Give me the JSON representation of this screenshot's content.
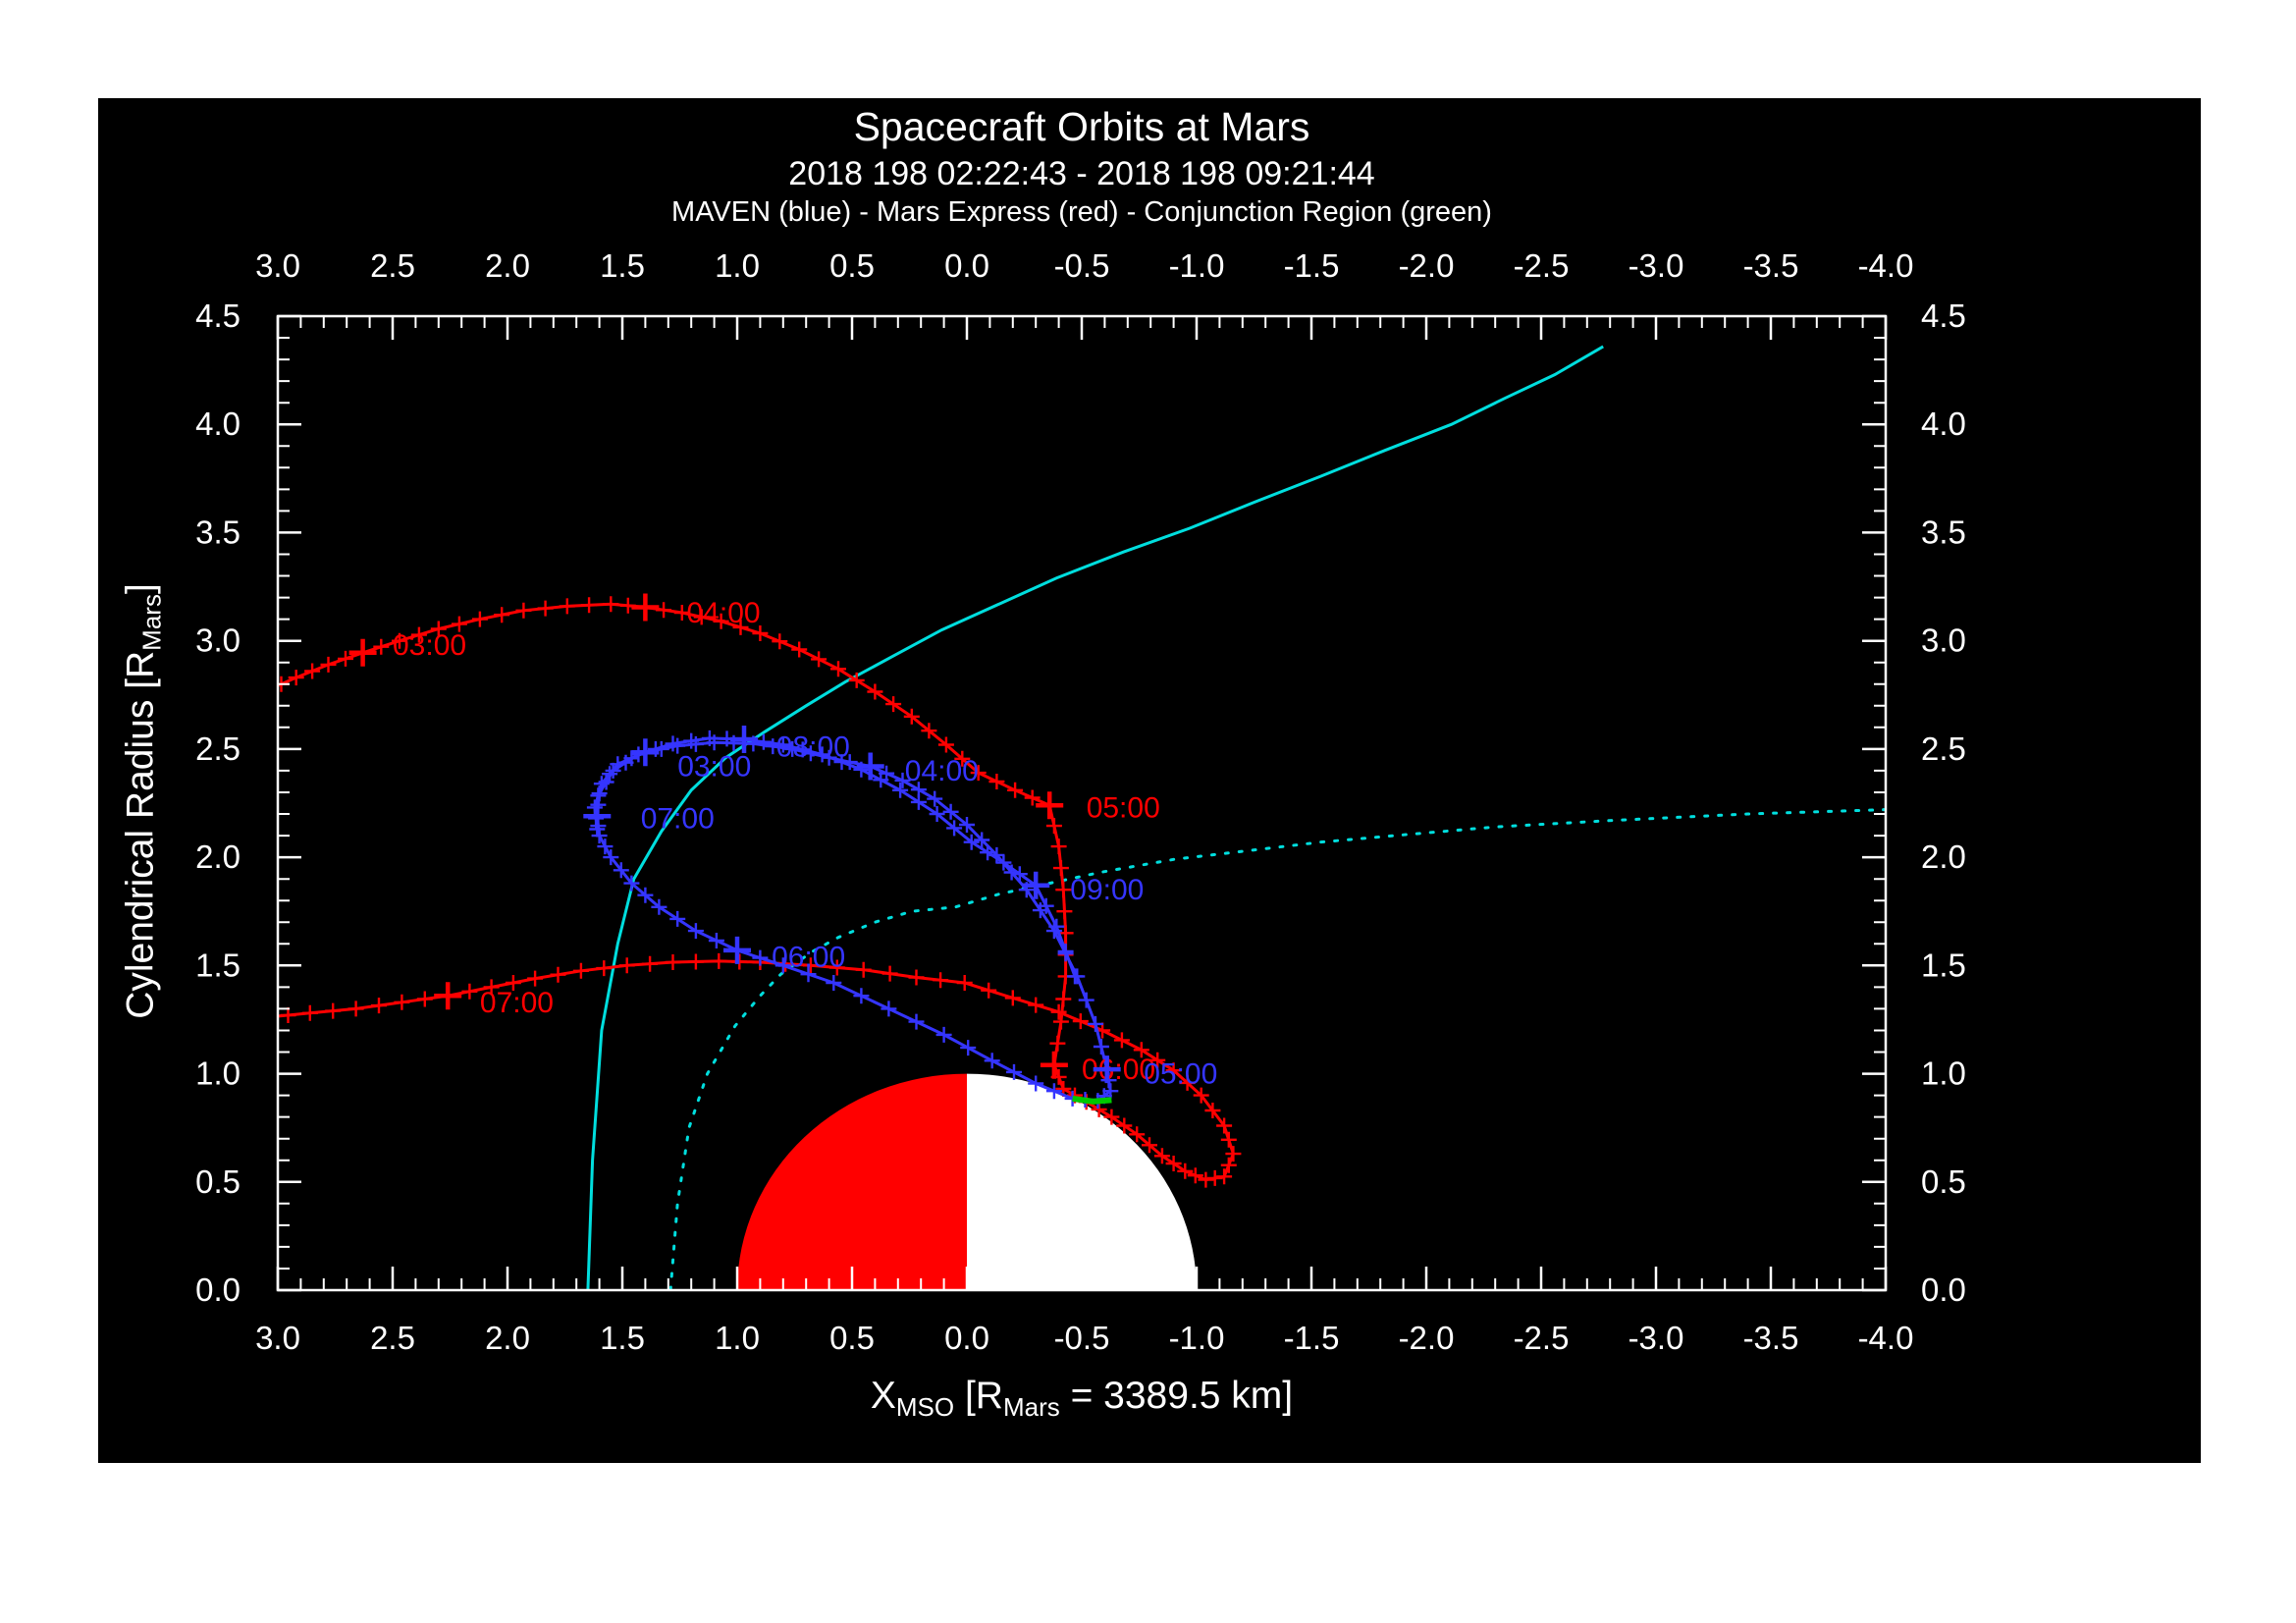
{
  "chart_data": {
    "type": "line",
    "title": "Spacecraft Orbits at Mars",
    "subtitle": "2018 198 02:22:43 - 2018 198 09:21:44",
    "legend_line": "MAVEN (blue) - Mars Express (red) - Conjunction Region (green)",
    "x_axis": {
      "label_parts": [
        "X",
        "MSO",
        " [R",
        "Mars",
        " = 3389.5 km]"
      ],
      "range": [
        3.0,
        -4.0
      ],
      "tick_values": [
        3.0,
        2.5,
        2.0,
        1.5,
        1.0,
        0.5,
        0.0,
        -0.5,
        -1.0,
        -1.5,
        -2.0,
        -2.5,
        -3.0,
        -3.5,
        -4.0
      ],
      "tick_labels": [
        "3.0",
        "2.5",
        "2.0",
        "1.5",
        "1.0",
        "0.5",
        "0.0",
        "-0.5",
        "-1.0",
        "-1.5",
        "-2.0",
        "-2.5",
        "-3.0",
        "-3.5",
        "-4.0"
      ],
      "minor_step": 0.1
    },
    "y_axis": {
      "label_parts": [
        "Cylendrical Radius [R",
        "Mars",
        "]"
      ],
      "range": [
        0.0,
        4.5
      ],
      "tick_values": [
        0.0,
        0.5,
        1.0,
        1.5,
        2.0,
        2.5,
        3.0,
        3.5,
        4.0,
        4.5
      ],
      "tick_labels": [
        "0.0",
        "0.5",
        "1.0",
        "1.5",
        "2.0",
        "2.5",
        "3.0",
        "3.5",
        "4.0",
        "4.5"
      ],
      "minor_step": 0.1
    },
    "grid": false,
    "frame_color": "#ffffff",
    "mars": {
      "center": [
        0,
        0
      ],
      "radius": 1.0,
      "sunward_half_color": "#ff0000",
      "anti_sunward_half_color": "#ffffff"
    },
    "series": [
      {
        "name": "bow-shock",
        "color": "#00dede",
        "style": "solid",
        "width": 3,
        "markers": "none",
        "points": [
          [
            1.65,
            0.0
          ],
          [
            1.63,
            0.6
          ],
          [
            1.59,
            1.2
          ],
          [
            1.52,
            1.6
          ],
          [
            1.45,
            1.9
          ],
          [
            1.33,
            2.12
          ],
          [
            1.2,
            2.31
          ],
          [
            1.05,
            2.46
          ],
          [
            0.88,
            2.58
          ],
          [
            0.7,
            2.7
          ],
          [
            0.53,
            2.81
          ],
          [
            0.32,
            2.93
          ],
          [
            0.11,
            3.05
          ],
          [
            -0.14,
            3.17
          ],
          [
            -0.39,
            3.29
          ],
          [
            -0.68,
            3.41
          ],
          [
            -0.97,
            3.52
          ],
          [
            -1.25,
            3.64
          ],
          [
            -1.54,
            3.76
          ],
          [
            -1.82,
            3.88
          ],
          [
            -2.11,
            4.0
          ],
          [
            -2.34,
            4.12
          ],
          [
            -2.56,
            4.23
          ],
          [
            -2.77,
            4.36
          ]
        ]
      },
      {
        "name": "mpb-boundary",
        "color": "#00dede",
        "style": "dotted",
        "width": 3,
        "markers": "none",
        "points": [
          [
            1.29,
            0.0
          ],
          [
            1.26,
            0.4
          ],
          [
            1.21,
            0.75
          ],
          [
            1.13,
            1.0
          ],
          [
            1.01,
            1.22
          ],
          [
            0.9,
            1.36
          ],
          [
            0.81,
            1.46
          ],
          [
            0.68,
            1.56
          ],
          [
            0.56,
            1.63
          ],
          [
            0.4,
            1.7
          ],
          [
            0.24,
            1.75
          ],
          [
            0.05,
            1.77
          ],
          [
            -0.14,
            1.83
          ],
          [
            -0.36,
            1.88
          ],
          [
            -0.58,
            1.93
          ],
          [
            -0.9,
            1.99
          ],
          [
            -1.22,
            2.03
          ],
          [
            -1.54,
            2.07
          ],
          [
            -1.86,
            2.1
          ],
          [
            -2.3,
            2.14
          ],
          [
            -2.81,
            2.17
          ],
          [
            -3.4,
            2.2
          ],
          [
            -4.0,
            2.22
          ]
        ]
      },
      {
        "name": "mars-express-orbit",
        "color": "#ff0000",
        "style": "solid",
        "width": 3,
        "markers": "plus",
        "points": [
          [
            3.05,
            2.77
          ],
          [
            2.92,
            2.83
          ],
          [
            2.78,
            2.89
          ],
          [
            2.63,
            2.945
          ],
          [
            2.47,
            3.0
          ],
          [
            2.3,
            3.055
          ],
          [
            2.12,
            3.1
          ],
          [
            1.93,
            3.14
          ],
          [
            1.74,
            3.16
          ],
          [
            1.55,
            3.17
          ],
          [
            1.4,
            3.155
          ],
          [
            1.24,
            3.13
          ],
          [
            1.07,
            3.09
          ],
          [
            0.9,
            3.035
          ],
          [
            0.73,
            2.96
          ],
          [
            0.56,
            2.87
          ],
          [
            0.4,
            2.765
          ],
          [
            0.24,
            2.65
          ],
          [
            0.09,
            2.52
          ],
          [
            -0.05,
            2.39
          ],
          [
            -0.21,
            2.31
          ],
          [
            -0.36,
            2.24
          ],
          [
            -0.4,
            2.05
          ],
          [
            -0.42,
            1.85
          ],
          [
            -0.43,
            1.65
          ],
          [
            -0.43,
            1.45
          ],
          [
            -0.41,
            1.24
          ],
          [
            -0.38,
            1.04
          ],
          [
            -0.42,
            0.93
          ],
          [
            -0.52,
            0.87
          ],
          [
            -0.63,
            0.8
          ],
          [
            -0.74,
            0.72
          ],
          [
            -0.85,
            0.62
          ],
          [
            -0.95,
            0.55
          ],
          [
            -1.04,
            0.51
          ],
          [
            -1.12,
            0.525
          ],
          [
            -1.16,
            0.63
          ],
          [
            -1.12,
            0.76
          ],
          [
            -1.02,
            0.9
          ],
          [
            -0.9,
            1.015
          ],
          [
            -0.76,
            1.11
          ],
          [
            -0.59,
            1.2
          ],
          [
            -0.4,
            1.285
          ],
          [
            -0.2,
            1.35
          ],
          [
            0.01,
            1.42
          ],
          [
            0.22,
            1.445
          ],
          [
            0.45,
            1.48
          ],
          [
            0.68,
            1.5
          ],
          [
            0.9,
            1.515
          ],
          [
            1.08,
            1.52
          ],
          [
            1.28,
            1.515
          ],
          [
            1.48,
            1.5
          ],
          [
            1.68,
            1.475
          ],
          [
            1.88,
            1.44
          ],
          [
            2.07,
            1.4
          ],
          [
            2.26,
            1.36
          ],
          [
            2.46,
            1.33
          ],
          [
            2.66,
            1.3
          ],
          [
            2.86,
            1.28
          ],
          [
            3.05,
            1.26
          ]
        ],
        "hour_marks": [
          {
            "label": "03:00",
            "marker": [
              2.63,
              2.945
            ],
            "label_pos": [
              2.5,
              2.98
            ]
          },
          {
            "label": "04:00",
            "marker": [
              1.4,
              3.155
            ],
            "label_pos": [
              1.22,
              3.13
            ]
          },
          {
            "label": "05:00",
            "marker": [
              -0.36,
              2.24
            ],
            "label_pos": [
              -0.52,
              2.23
            ]
          },
          {
            "label": "06:00",
            "marker": [
              -0.38,
              1.04
            ],
            "label_pos": [
              -0.5,
              1.02
            ]
          },
          {
            "label": "07:00",
            "marker": [
              2.26,
              1.36
            ],
            "label_pos": [
              2.12,
              1.33
            ]
          }
        ]
      },
      {
        "name": "maven-orbit",
        "color": "#3535ff",
        "style": "solid",
        "width": 3,
        "markers": "plus",
        "points": [
          [
            1.61,
            2.13
          ],
          [
            1.62,
            2.23
          ],
          [
            1.59,
            2.34
          ],
          [
            1.52,
            2.43
          ],
          [
            1.4,
            2.485
          ],
          [
            1.26,
            2.515
          ],
          [
            1.1,
            2.53
          ],
          [
            0.93,
            2.525
          ],
          [
            0.76,
            2.5
          ],
          [
            0.6,
            2.46
          ],
          [
            0.42,
            2.42
          ],
          [
            0.28,
            2.355
          ],
          [
            0.14,
            2.27
          ],
          [
            0.0,
            2.15
          ],
          [
            -0.13,
            2.01
          ],
          [
            -0.26,
            1.85
          ],
          [
            -0.38,
            1.66
          ],
          [
            -0.48,
            1.45
          ],
          [
            -0.56,
            1.23
          ],
          [
            -0.61,
            1.02
          ],
          [
            -0.625,
            0.92
          ],
          [
            -0.57,
            0.875
          ],
          [
            -0.46,
            0.885
          ],
          [
            -0.3,
            0.955
          ],
          [
            -0.11,
            1.06
          ],
          [
            0.1,
            1.18
          ],
          [
            0.34,
            1.3
          ],
          [
            0.58,
            1.42
          ],
          [
            0.8,
            1.5
          ],
          [
            1.0,
            1.57
          ],
          [
            1.18,
            1.66
          ],
          [
            1.34,
            1.77
          ],
          [
            1.46,
            1.88
          ],
          [
            1.55,
            2.0
          ],
          [
            1.6,
            2.1
          ],
          [
            1.61,
            2.19
          ],
          [
            1.6,
            2.295
          ],
          [
            1.54,
            2.4
          ],
          [
            1.43,
            2.475
          ],
          [
            1.28,
            2.525
          ],
          [
            1.12,
            2.55
          ],
          [
            0.97,
            2.545
          ],
          [
            0.8,
            2.52
          ],
          [
            0.63,
            2.475
          ],
          [
            0.46,
            2.405
          ],
          [
            0.29,
            2.31
          ],
          [
            0.13,
            2.2
          ],
          [
            -0.02,
            2.07
          ],
          [
            -0.16,
            1.975
          ],
          [
            -0.3,
            1.87
          ],
          [
            -0.39,
            1.68
          ],
          [
            -0.47,
            1.45
          ]
        ],
        "hour_marks": [
          {
            "label": "03:00",
            "marker": [
              1.4,
              2.485
            ],
            "label_pos": [
              1.26,
              2.42
            ]
          },
          {
            "label": "04:00",
            "marker": [
              0.42,
              2.42
            ],
            "label_pos": [
              0.27,
              2.4
            ]
          },
          {
            "label": "05:00",
            "marker": [
              -0.61,
              1.02
            ],
            "label_pos": [
              -0.77,
              1.0
            ]
          },
          {
            "label": "06:00",
            "marker": [
              1.0,
              1.57
            ],
            "label_pos": [
              0.85,
              1.54
            ]
          },
          {
            "label": "07:00",
            "marker": [
              1.61,
              2.19
            ],
            "label_pos": [
              1.42,
              2.18
            ]
          },
          {
            "label": "08:00",
            "marker": [
              0.97,
              2.545
            ],
            "label_pos": [
              0.83,
              2.51
            ]
          },
          {
            "label": "09:00",
            "marker": [
              -0.3,
              1.87
            ],
            "label_pos": [
              -0.45,
              1.85
            ]
          }
        ]
      },
      {
        "name": "conjunction-region",
        "color": "#00c800",
        "style": "solid",
        "width": 6,
        "markers": "none",
        "points": [
          [
            -0.46,
            0.885
          ],
          [
            -0.55,
            0.872
          ],
          [
            -0.63,
            0.878
          ]
        ]
      }
    ]
  }
}
